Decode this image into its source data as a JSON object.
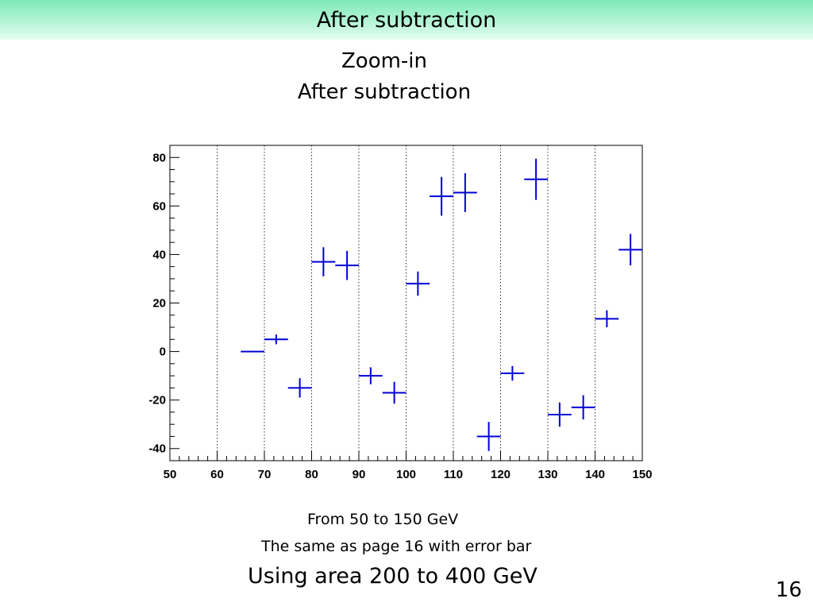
{
  "slide": {
    "title": "After subtraction",
    "subtitle_line1": "Zoom-in",
    "subtitle_line2": "After subtraction",
    "note_range": "From 50 to 150 GeV",
    "note_errorbar": "The same as page 16 with error bar",
    "note_area": "Using area 200 to 400 GeV",
    "page_number": "16"
  },
  "colors": {
    "title_bar": "#9ef0c8",
    "marker": "#0000d8",
    "grid": "#000000"
  },
  "chart_data": {
    "type": "scatter",
    "title": "",
    "xlabel": "",
    "ylabel": "",
    "xlim": [
      50,
      150
    ],
    "ylim": [
      -45,
      85
    ],
    "x_ticks": [
      50,
      60,
      70,
      80,
      90,
      100,
      110,
      120,
      130,
      140,
      150
    ],
    "y_ticks": [
      -40,
      -20,
      0,
      20,
      40,
      60,
      80
    ],
    "grid": "vertical dotted",
    "legend": "none",
    "bin_width": 5,
    "series": [
      {
        "points": [
          {
            "x": 67.5,
            "y": 0,
            "y_err": 0.3
          },
          {
            "x": 72.5,
            "y": 5,
            "y_err": 2
          },
          {
            "x": 77.5,
            "y": -15,
            "y_err": 4
          },
          {
            "x": 82.5,
            "y": 37,
            "y_err": 6
          },
          {
            "x": 87.5,
            "y": 35.5,
            "y_err": 6
          },
          {
            "x": 92.5,
            "y": -10,
            "y_err": 3.5
          },
          {
            "x": 97.5,
            "y": -17,
            "y_err": 4.5
          },
          {
            "x": 102.5,
            "y": 28,
            "y_err": 5
          },
          {
            "x": 107.5,
            "y": 64,
            "y_err": 8
          },
          {
            "x": 112.5,
            "y": 65.5,
            "y_err": 8
          },
          {
            "x": 117.5,
            "y": -35,
            "y_err": 6
          },
          {
            "x": 122.5,
            "y": -9,
            "y_err": 3
          },
          {
            "x": 127.5,
            "y": 71,
            "y_err": 8.5
          },
          {
            "x": 132.5,
            "y": -26,
            "y_err": 5
          },
          {
            "x": 137.5,
            "y": -23,
            "y_err": 5
          },
          {
            "x": 142.5,
            "y": 13.5,
            "y_err": 3.5
          },
          {
            "x": 147.5,
            "y": 42,
            "y_err": 6.5
          }
        ]
      }
    ]
  }
}
